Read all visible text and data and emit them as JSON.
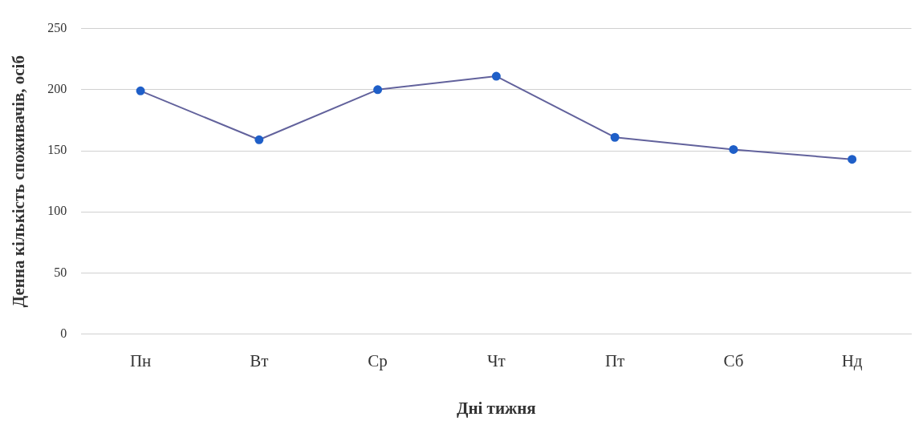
{
  "chart_data": {
    "type": "line",
    "xlabel": "Дні тижня",
    "ylabel": "Денна кількість споживачів, осіб",
    "categories": [
      "Пн",
      "Вт",
      "Ср",
      "Чт",
      "Пт",
      "Сб",
      "Нд"
    ],
    "series": [
      {
        "color": "#62629c",
        "values": [
          199,
          159,
          200,
          211,
          161,
          151,
          143
        ]
      }
    ],
    "ylim": [
      0,
      250
    ],
    "yticks": [
      0,
      50,
      100,
      150,
      200,
      250
    ],
    "grid": "y",
    "marker": "circle",
    "line_style": "solid",
    "legend": false
  }
}
